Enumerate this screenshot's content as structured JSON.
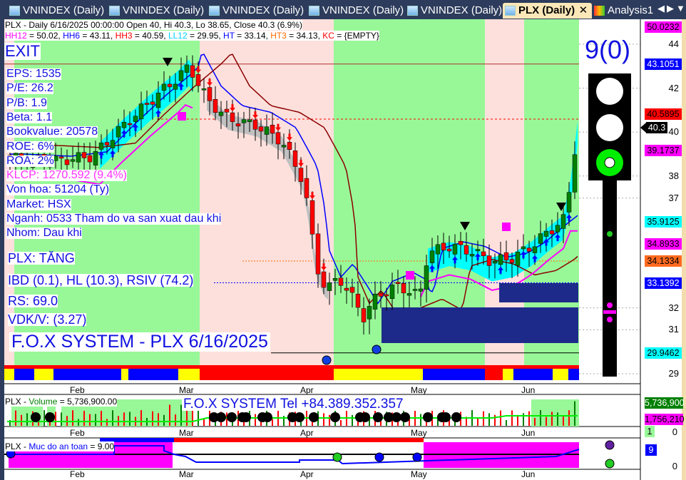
{
  "tabs": [
    {
      "label": "VNINDEX (Daily)"
    },
    {
      "label": "VNINDEX (Daily)"
    },
    {
      "label": "VNINDEX (Daily)"
    },
    {
      "label": "VNINDEX (Daily)"
    },
    {
      "label": "VNINDEX (Daily)"
    },
    {
      "label": "PLX (Daily)",
      "active": true
    },
    {
      "label": "Analysis1"
    }
  ],
  "header": {
    "line1": "PLX - Daily 6/16/2025 00:00:00 Open 40, Hi 40.3, Lo 38.65, Close 40.3 (6.9%)",
    "ind": [
      {
        "k": "HH12",
        "v": " = 50.02, ",
        "c": "#ff00ff"
      },
      {
        "k": "HH6",
        "v": " = 43.11, ",
        "c": "#0000ff"
      },
      {
        "k": "HH3",
        "v": " = 40.59, ",
        "c": "#ff0000"
      },
      {
        "k": "LL12",
        "v": " = 29.95, ",
        "c": "#00d0ff"
      },
      {
        "k": "HT",
        "v": "  = 33.14, ",
        "c": "#0000ff"
      },
      {
        "k": "HT3",
        "v": "  = 34.13, ",
        "c": "#ff6a00"
      },
      {
        "k": "KC",
        "v": " = {EMPTY}",
        "c": "#ff0000"
      }
    ]
  },
  "signal": "EXIT",
  "fundamentals": [
    "EPS: 1535",
    "P/E: 26.2",
    "P/B: 1.9",
    "Beta: 1.1",
    "Bookvalue: 20578",
    "ROE: 6%",
    "ROA: 2%",
    "KLCP: 1270.592 (9.4%)",
    "Von hoa: 51204 (Ty)",
    "Market: HSX",
    "Nganh: 0533 Tham do va san xuat dau khi",
    "Nhom: Dau khi"
  ],
  "trend": "PLX: TĂNG",
  "ratios": "IBD (0.1), HL (10.3), RSIV (74.2)",
  "rs": "RS: 69.0",
  "vdk": "VDK/V:  (3.27)",
  "watermark": "F.O.X SYSTEM - PLX 6/16/2025",
  "score": "9(0)",
  "traffic_light": {
    "active": "green"
  },
  "price_axis": [
    "44",
    "42",
    "40",
    "38",
    "37",
    "32",
    "31",
    "29"
  ],
  "price_tags": [
    {
      "v": "50.0232",
      "bg": "#ff00ff",
      "fg": "#000"
    },
    {
      "v": "43.1051",
      "bg": "#0000ff",
      "fg": "#fff"
    },
    {
      "v": "40.5895",
      "bg": "#ff0000",
      "fg": "#000"
    },
    {
      "v": "40.3",
      "bg": "#000",
      "fg": "#fff"
    },
    {
      "v": "39.1737",
      "bg": "#ff00ff",
      "fg": "#000"
    },
    {
      "v": "35.9125",
      "bg": "#00ffff",
      "fg": "#000"
    },
    {
      "v": "34.8933",
      "bg": "#ff00ff",
      "fg": "#000"
    },
    {
      "v": "34.1334",
      "bg": "#ff6a20",
      "fg": "#000"
    },
    {
      "v": "33.1392",
      "bg": "#0000ff",
      "fg": "#fff"
    },
    {
      "v": "29.9462",
      "bg": "#00ffff",
      "fg": "#000"
    }
  ],
  "months": [
    "Feb",
    "Mar",
    "Apr",
    "May",
    "Jun"
  ],
  "volume": {
    "title_prefix": "PLX - ",
    "title_name": "Volume",
    "title_value": " = 5,736,900.00",
    "contact": "F.O.X SYSTEM Tel +84.389.352.357",
    "tags": [
      {
        "v": "5,736,900",
        "bg": "#008000",
        "fg": "#fff"
      },
      {
        "v": "1,756,210",
        "bg": "#ff00ff",
        "fg": "#000"
      },
      {
        "v": "1",
        "bg": "#98f898",
        "fg": "#000"
      }
    ],
    "axis": "0"
  },
  "safety": {
    "title_prefix": "PLX - ",
    "title_name": "Muc do an toan",
    "title_value": " = 9.00",
    "tag": "9",
    "axis": "0"
  },
  "colors": {
    "up": "#008000",
    "down": "#ff0000",
    "green_zone": "#98f898",
    "pink_zone": "#fde0dc",
    "band": "#00ffff",
    "accent": "#1010e0"
  }
}
